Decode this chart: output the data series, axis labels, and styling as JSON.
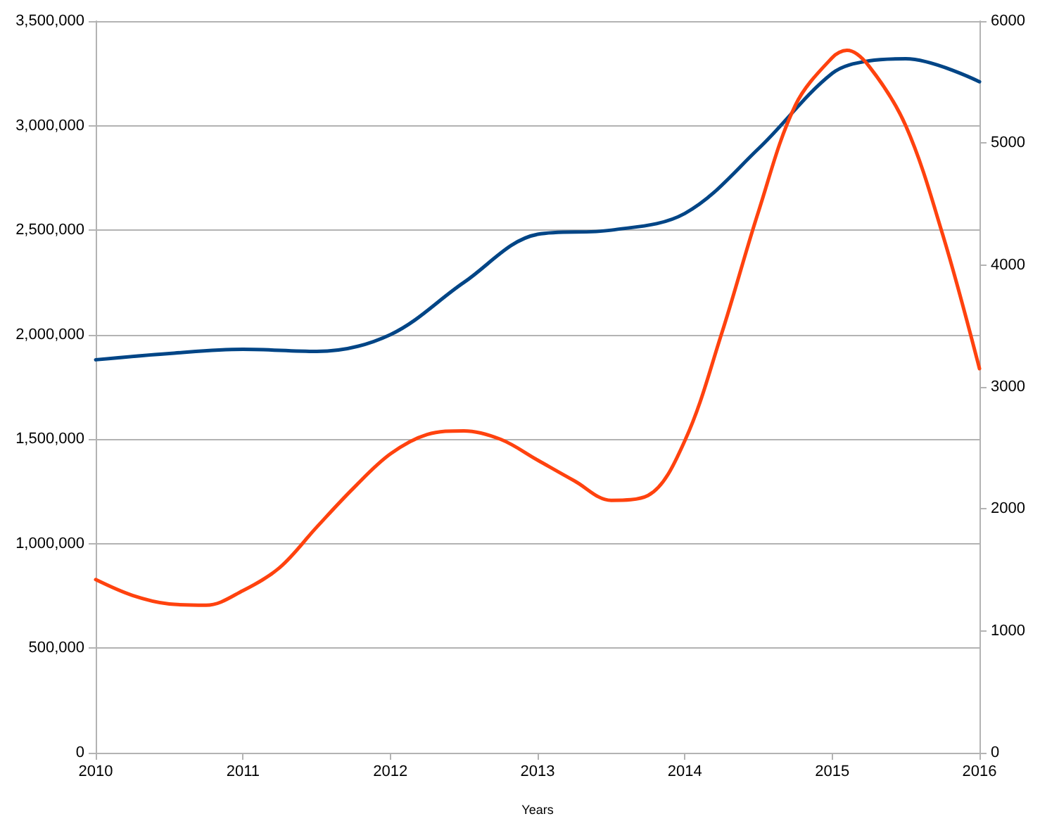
{
  "chart_data": {
    "type": "line",
    "xlabel": "Years",
    "xlim": [
      2010,
      2016
    ],
    "xticks": [
      2010,
      2011,
      2012,
      2013,
      2014,
      2015,
      2016
    ],
    "ylim": [
      0,
      3500000
    ],
    "yticks": [
      0,
      {
        "value": 500000,
        "label": "500,000"
      },
      {
        "value": 1000000,
        "label": "1,000,000"
      },
      {
        "value": 1500000,
        "label": "1,500,000"
      },
      {
        "value": 2000000,
        "label": "2,000,000"
      },
      {
        "value": 2500000,
        "label": "2,500,000"
      },
      {
        "value": 3000000,
        "label": "3,000,000"
      },
      {
        "value": 3500000,
        "label": "3,500,000"
      }
    ],
    "y2lim": [
      0,
      6000
    ],
    "y2ticks": [
      0,
      1000,
      2000,
      3000,
      4000,
      5000,
      6000
    ],
    "grid": "y",
    "marker": "none",
    "line_style": "solid",
    "series": [
      {
        "color": "#004586",
        "x": [
          2010,
          2010.5,
          2011,
          2011.5,
          2012,
          2012.5,
          2013,
          2013.5,
          2014,
          2014.5,
          2015,
          2015.25,
          2015.5,
          2016
        ],
        "values": [
          1880000,
          1910000,
          1930000,
          1920000,
          2000000,
          2250000,
          2480000,
          2500000,
          2580000,
          2890000,
          3250000,
          3310000,
          3320000,
          3210000
        ]
      },
      {
        "color": "#ff420e",
        "axis": "y2",
        "x": [
          2010,
          2010.25,
          2010.5,
          2010.75,
          2011,
          2011.25,
          2011.5,
          2011.75,
          2012,
          2012.25,
          2012.5,
          2012.75,
          2013,
          2013.25,
          2013.5,
          2013.75,
          2014,
          2014.25,
          2014.5,
          2014.75,
          2015,
          2015.1,
          2015.25,
          2015.5,
          2015.75,
          2016
        ],
        "values": [
          1420,
          1290,
          1220,
          1210,
          1330,
          1520,
          1850,
          2170,
          2450,
          2610,
          2640,
          2570,
          2400,
          2230,
          2070,
          2110,
          2560,
          3440,
          4440,
          5310,
          5700,
          5760,
          5630,
          5140,
          4250,
          3150
        ]
      }
    ]
  }
}
